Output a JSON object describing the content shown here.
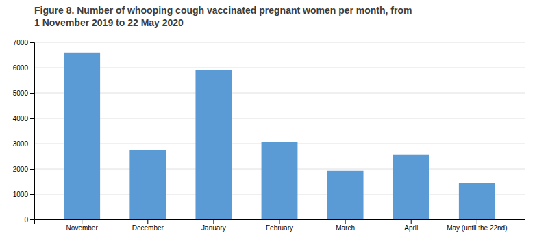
{
  "chart_data": {
    "type": "bar",
    "title": "Figure 8. Number of whooping cough vaccinated pregnant women per month, from",
    "subtitle": "1 November 2019 to 22 May 2020",
    "categories": [
      "November",
      "December",
      "January",
      "February",
      "March",
      "April",
      "May (until the 22nd)"
    ],
    "values": [
      6600,
      2750,
      5900,
      3075,
      1925,
      2575,
      1450
    ],
    "color": "#5b9bd5",
    "ylim": [
      0,
      7000
    ],
    "yticks": [
      0,
      1000,
      2000,
      3000,
      4000,
      5000,
      6000,
      7000
    ],
    "grid": true
  }
}
